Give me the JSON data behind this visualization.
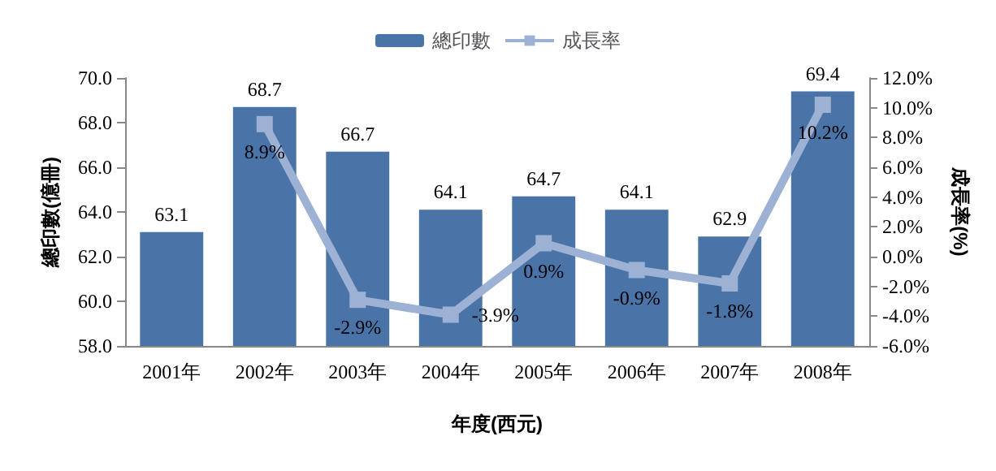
{
  "chart_data": {
    "type": "bar",
    "xlabel": "年度(西元)",
    "ylabel": "總印數(億冊)",
    "y2label": "成長率(%)",
    "categories": [
      "2001年",
      "2002年",
      "2003年",
      "2004年",
      "2005年",
      "2006年",
      "2007年",
      "2008年"
    ],
    "series": [
      {
        "name": "總印數",
        "color": "#4a73a8",
        "values": [
          63.1,
          68.7,
          66.7,
          64.1,
          64.7,
          64.1,
          62.9,
          69.4
        ],
        "data_labels": true
      },
      {
        "name": "成長率",
        "type": "line",
        "axis": "y2",
        "color": "#9cb1d3",
        "marker": "square",
        "values": [
          null,
          8.9,
          -2.9,
          -3.9,
          0.9,
          -0.9,
          -1.8,
          10.2
        ],
        "value_labels": [
          null,
          "8.9%",
          "-2.9%",
          "-3.9%",
          "0.9%",
          "-0.9%",
          "-1.8%",
          "10.2%"
        ]
      }
    ],
    "ylim": [
      58,
      70
    ],
    "yticks": [
      {
        "value": 58,
        "label": "58.0"
      },
      {
        "value": 60,
        "label": "60.0"
      },
      {
        "value": 62,
        "label": "62.0"
      },
      {
        "value": 64,
        "label": "64.0"
      },
      {
        "value": 66,
        "label": "66.0"
      },
      {
        "value": 68,
        "label": "68.0"
      },
      {
        "value": 70,
        "label": "70.0"
      }
    ],
    "y2lim": [
      -6,
      12
    ],
    "y2ticks": [
      {
        "value": -6,
        "label": "-6.0%"
      },
      {
        "value": -4,
        "label": "-4.0%"
      },
      {
        "value": -2,
        "label": "-2.0%"
      },
      {
        "value": 0,
        "label": "0.0%"
      },
      {
        "value": 2,
        "label": "2.0%"
      },
      {
        "value": 4,
        "label": "4.0%"
      },
      {
        "value": 6,
        "label": "6.0%"
      },
      {
        "value": 8,
        "label": "8.0%"
      },
      {
        "value": 10,
        "label": "10.0%"
      },
      {
        "value": 12,
        "label": "12.0%"
      }
    ],
    "grid": false,
    "legend": "top"
  }
}
